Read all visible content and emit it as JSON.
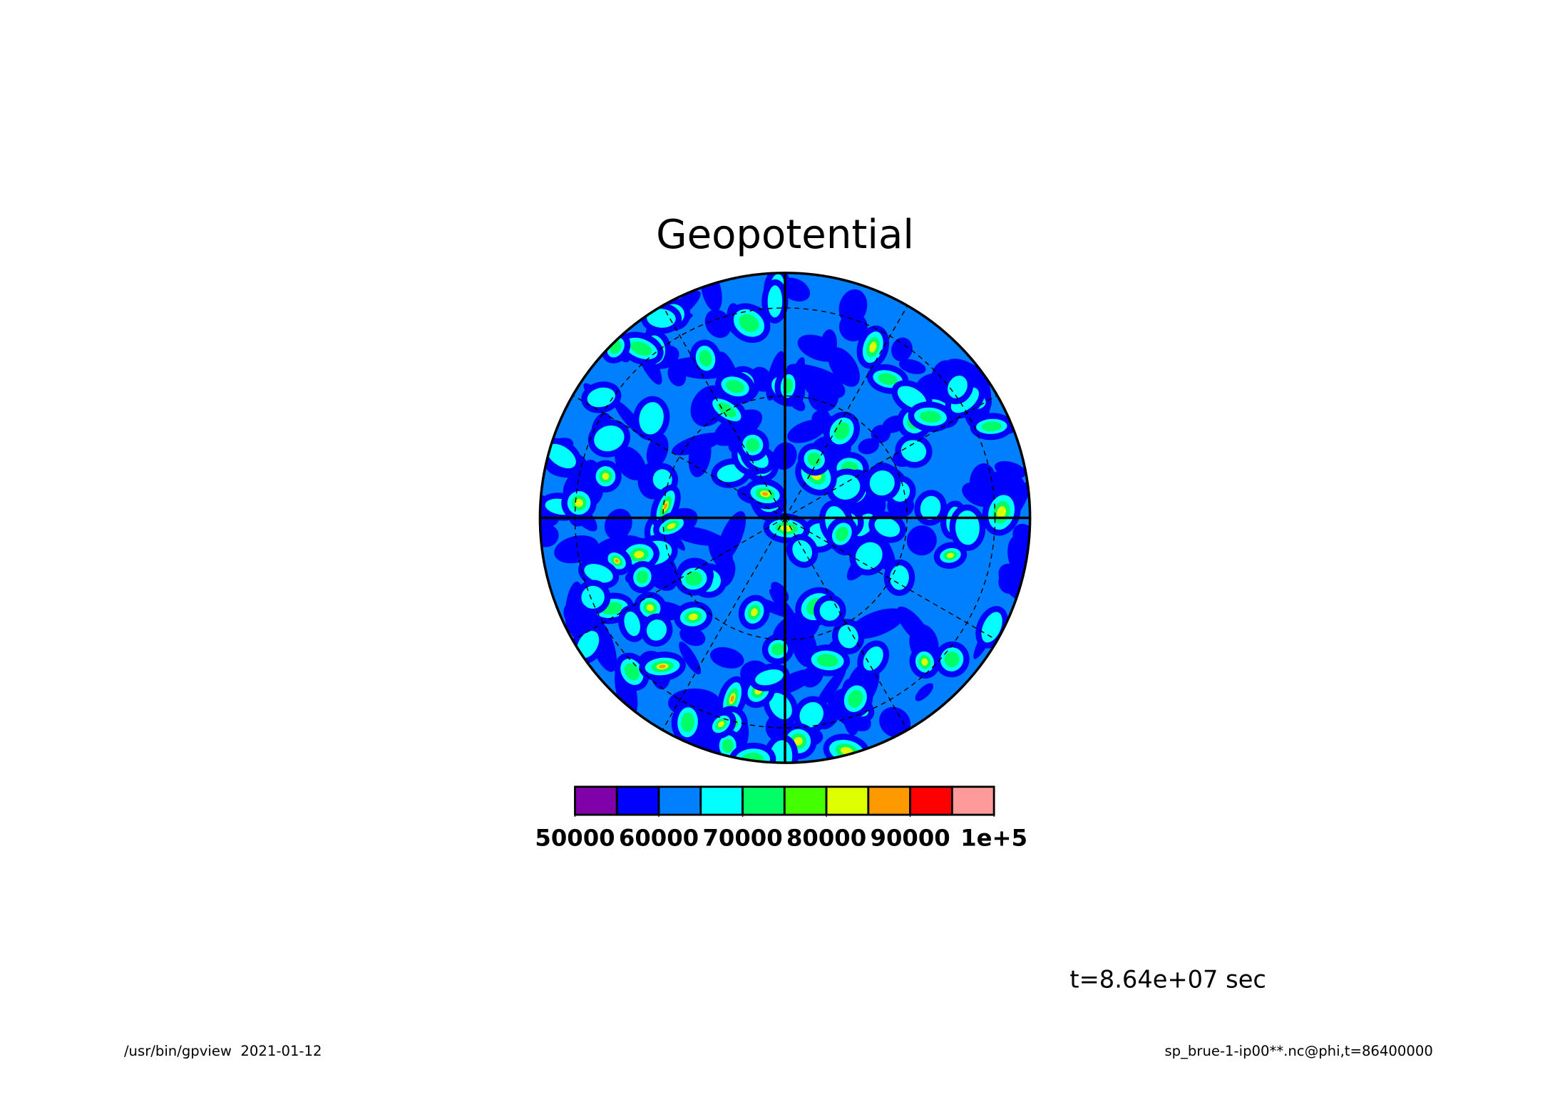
{
  "chart_data": {
    "type": "contour",
    "title": "Geopotential",
    "annotation": "t=8.64e+07 sec",
    "footer_left": "/usr/bin/gpview  2021-01-12",
    "footer_right": "sp_brue-1-ip00**.nc@phi,t=86400000",
    "colorbar": {
      "levels": [
        50000,
        55000,
        60000,
        65000,
        70000,
        75000,
        80000,
        85000,
        90000,
        95000,
        100000
      ],
      "colors": [
        "#8000aa",
        "#0000ff",
        "#0080ff",
        "#00ffff",
        "#00ff66",
        "#44ff00",
        "#ddff00",
        "#ff9900",
        "#ff0000",
        "#ff9a9a"
      ],
      "ticks": [
        50000,
        60000,
        70000,
        80000,
        90000,
        {
          "value": 100000,
          "label": "1e+5"
        }
      ]
    }
  }
}
